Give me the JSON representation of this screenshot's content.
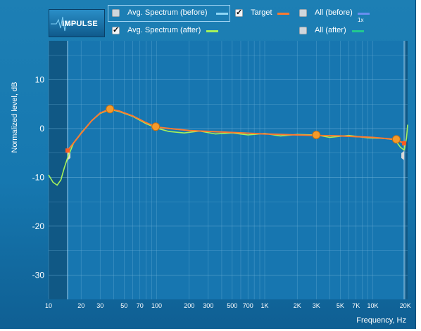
{
  "toolbar": {
    "impulse_label": "IMPULSE",
    "badge": "1x"
  },
  "legend": {
    "items": [
      {
        "label": "Avg. Spectrum (before)",
        "checked": false,
        "color": "#8fd6f5"
      },
      {
        "label": "Target",
        "checked": true,
        "color": "#ff7a2f"
      },
      {
        "label": "All (before)",
        "checked": false,
        "color": "#6a8ff0"
      },
      {
        "label": "Avg. Spectrum (after)",
        "checked": true,
        "color": "#a6f25a"
      },
      {
        "label": "All (after)",
        "checked": false,
        "color": "#22c98f"
      }
    ]
  },
  "chart_data": {
    "type": "line",
    "ylabel": "Normalized level, dB",
    "xlabel": "Frequency, Hz",
    "x_scale": "log",
    "xlim": [
      10,
      21000
    ],
    "ylim": [
      -35,
      18
    ],
    "x_ticks": [
      {
        "v": 10,
        "l": "10"
      },
      {
        "v": 20,
        "l": "20"
      },
      {
        "v": 30,
        "l": "30"
      },
      {
        "v": 50,
        "l": "50"
      },
      {
        "v": 70,
        "l": "70"
      },
      {
        "v": 100,
        "l": "100"
      },
      {
        "v": 200,
        "l": "200"
      },
      {
        "v": 300,
        "l": "300"
      },
      {
        "v": 500,
        "l": "500"
      },
      {
        "v": 700,
        "l": "700"
      },
      {
        "v": 1000,
        "l": "1K"
      },
      {
        "v": 2000,
        "l": "2K"
      },
      {
        "v": 3000,
        "l": "3K"
      },
      {
        "v": 5000,
        "l": "5K"
      },
      {
        "v": 7000,
        "l": "7K"
      },
      {
        "v": 10000,
        "l": "10K"
      },
      {
        "v": 20000,
        "l": "20K"
      }
    ],
    "y_ticks": [
      {
        "v": 10,
        "l": "10"
      },
      {
        "v": 0,
        "l": "0"
      },
      {
        "v": -10,
        "l": "-10"
      },
      {
        "v": -20,
        "l": "-20"
      },
      {
        "v": -30,
        "l": "-30"
      }
    ],
    "range_markers": [
      15,
      19500
    ],
    "series": [
      {
        "name": "Target",
        "color": "#ff7a2f",
        "points": [
          [
            15,
            -4.5
          ],
          [
            20,
            -1.0
          ],
          [
            25,
            1.6
          ],
          [
            30,
            3.2
          ],
          [
            37,
            4.0
          ],
          [
            45,
            3.6
          ],
          [
            60,
            2.6
          ],
          [
            80,
            1.2
          ],
          [
            100,
            0.3
          ],
          [
            200,
            -0.4
          ],
          [
            500,
            -0.8
          ],
          [
            1000,
            -1.1
          ],
          [
            2000,
            -1.3
          ],
          [
            3000,
            -1.4
          ],
          [
            5000,
            -1.5
          ],
          [
            10000,
            -1.8
          ],
          [
            16000,
            -2.2
          ],
          [
            19500,
            -3.0
          ]
        ]
      },
      {
        "name": "Avg. Spectrum (after)",
        "color": "#a6f25a",
        "points": [
          [
            10,
            -9.5
          ],
          [
            11,
            -11.0
          ],
          [
            12,
            -11.6
          ],
          [
            13,
            -10.5
          ],
          [
            14,
            -8.0
          ],
          [
            15,
            -6.0
          ],
          [
            17,
            -3.0
          ],
          [
            20,
            -0.9
          ],
          [
            25,
            1.6
          ],
          [
            30,
            3.1
          ],
          [
            37,
            3.9
          ],
          [
            45,
            3.5
          ],
          [
            60,
            2.5
          ],
          [
            80,
            1.0
          ],
          [
            100,
            0.1
          ],
          [
            130,
            -0.6
          ],
          [
            180,
            -0.9
          ],
          [
            250,
            -0.5
          ],
          [
            350,
            -1.1
          ],
          [
            500,
            -0.9
          ],
          [
            700,
            -1.3
          ],
          [
            1000,
            -1.0
          ],
          [
            1400,
            -1.5
          ],
          [
            2000,
            -1.2
          ],
          [
            3000,
            -1.3
          ],
          [
            4000,
            -1.8
          ],
          [
            6000,
            -1.4
          ],
          [
            9000,
            -1.9
          ],
          [
            13000,
            -2.0
          ],
          [
            16000,
            -2.3
          ],
          [
            18000,
            -3.8
          ],
          [
            19500,
            -4.4
          ],
          [
            20500,
            -2.0
          ],
          [
            21000,
            0.8
          ]
        ]
      }
    ],
    "control_points": [
      [
        37,
        4.0
      ],
      [
        98,
        0.4
      ],
      [
        3000,
        -1.3
      ],
      [
        16500,
        -2.2
      ]
    ]
  },
  "colors": {
    "panel": "#1678b0",
    "shaded": "#0f4f77",
    "grid": "#6fb2d8",
    "point": "#f59a2a"
  }
}
